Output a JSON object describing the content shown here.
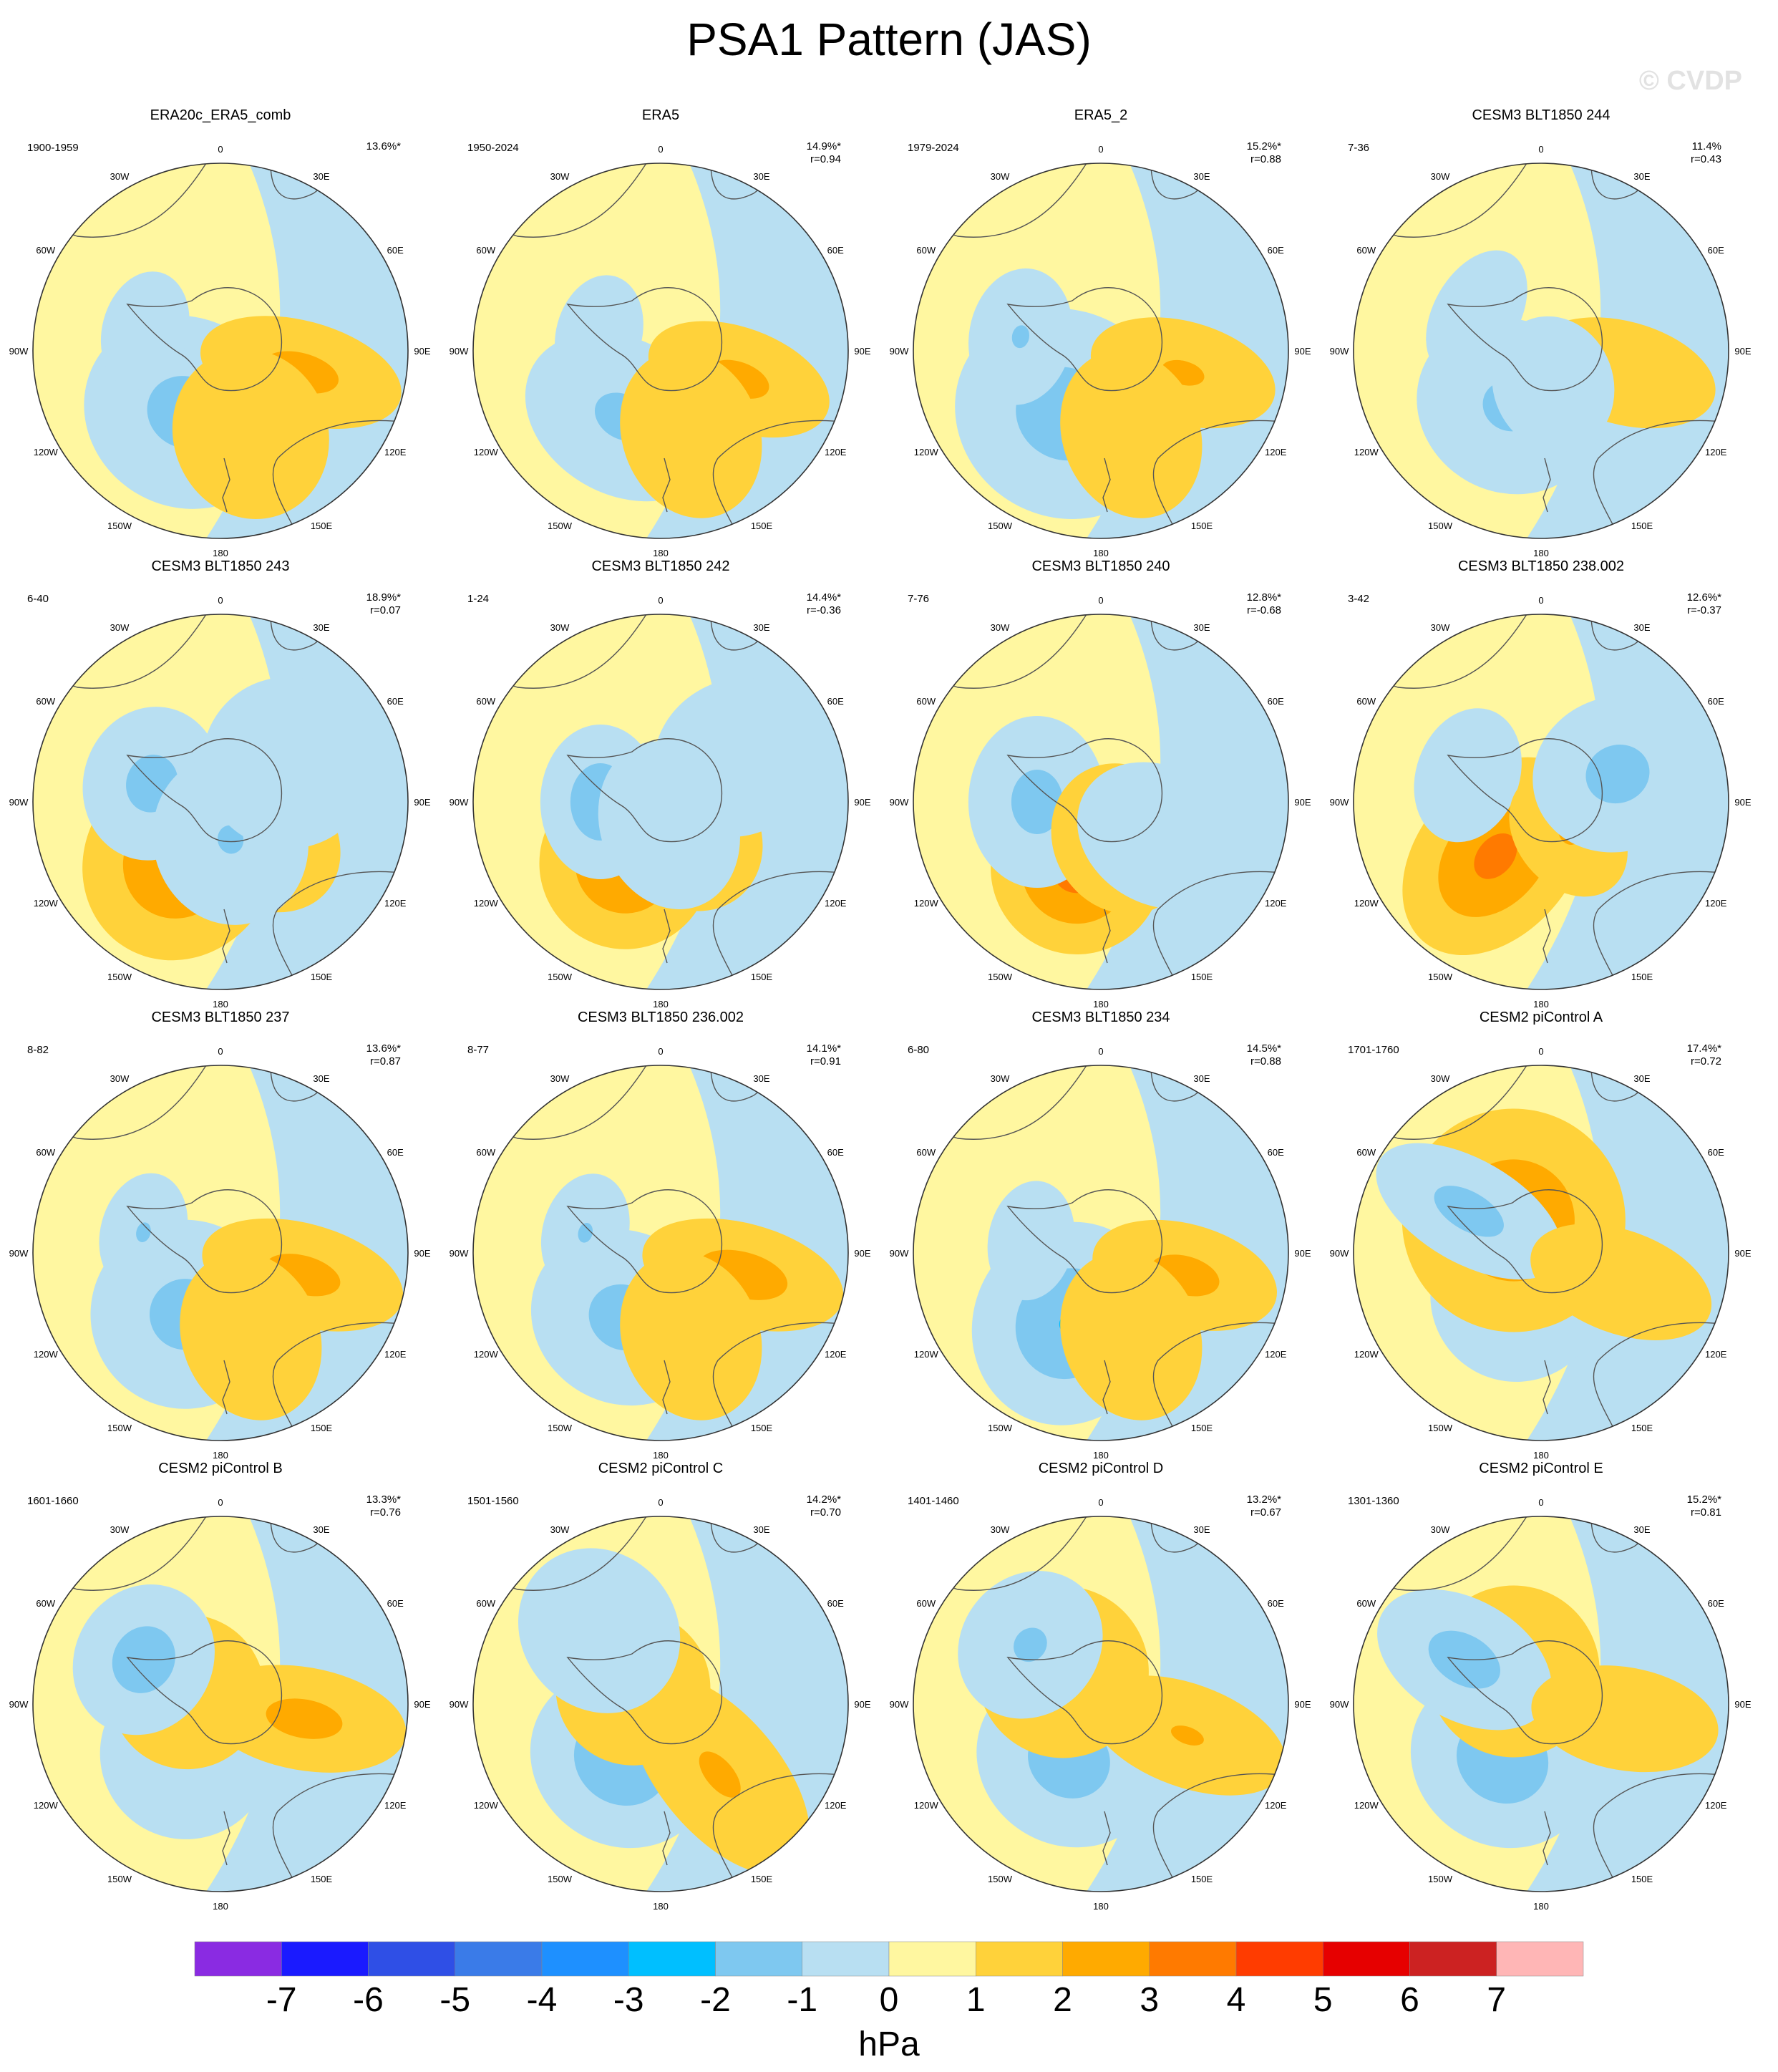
{
  "title": "PSA1 Pattern (JAS)",
  "watermark": "© CVDP",
  "units": "hPa",
  "colorbar": {
    "colors": [
      "#8a2be2",
      "#1a1aff",
      "#2f4fe6",
      "#3a7be8",
      "#1e90ff",
      "#00bfff",
      "#7ec8f0",
      "#b8dff2",
      "#fff7a0",
      "#ffd23a",
      "#ffaa00",
      "#ff7a00",
      "#ff3c00",
      "#e60000",
      "#cc2222",
      "#ffb6b6"
    ],
    "labels": [
      "-7",
      "-6",
      "-5",
      "-4",
      "-3",
      "-2",
      "-1",
      "0",
      "1",
      "2",
      "3",
      "4",
      "5",
      "6",
      "7"
    ]
  },
  "lon_labels": [
    "0",
    "30E",
    "60E",
    "90E",
    "120E",
    "150E",
    "180",
    "150W",
    "120W",
    "90W",
    "60W",
    "30W"
  ],
  "panels": [
    {
      "title": "ERA20c_ERA5_comb",
      "years": "1900-1959",
      "pct": "13.6%*",
      "r": "",
      "fields": [
        [
          -1,
          210,
          200,
          3,
          1.6,
          1.2,
          1.1
        ],
        [
          -1,
          285,
          220,
          4,
          1.0,
          0.7,
          0.5
        ],
        [
          1,
          105,
          235,
          3,
          1.6,
          0.6,
          1.2
        ],
        [
          1,
          160,
          250,
          5,
          1.0,
          0.9,
          1.0
        ],
        [
          0,
          0,
          0,
          0,
          0,
          0.7,
          0
        ]
      ]
    },
    {
      "title": "ERA5",
      "years": "1950-2024",
      "pct": "14.9%*",
      "r": "r=0.94",
      "fields": [
        [
          -1,
          210,
          215,
          3,
          1.4,
          1.2,
          0.9
        ],
        [
          -1,
          285,
          180,
          4,
          0.9,
          0.7,
          0.5
        ],
        [
          1,
          110,
          235,
          3,
          1.5,
          0.6,
          1.1
        ],
        [
          1,
          160,
          250,
          5,
          0.9,
          0.8,
          1.0
        ],
        [
          0,
          0,
          0,
          0,
          0,
          0.6,
          0
        ]
      ]
    },
    {
      "title": "ERA5_2",
      "years": "1979-2024",
      "pct": "15.2%*",
      "r": "r=0.88",
      "fields": [
        [
          -1,
          210,
          205,
          3,
          1.8,
          1.3,
          1.2
        ],
        [
          -1,
          280,
          230,
          4,
          1.2,
          0.8,
          0.6
        ],
        [
          1,
          105,
          240,
          3,
          1.3,
          0.6,
          1.1
        ],
        [
          1,
          160,
          250,
          5,
          0.7,
          0.8,
          1.0
        ],
        [
          0,
          0,
          0,
          0,
          0,
          0.8,
          0
        ]
      ]
    },
    {
      "title": "CESM3 BLT1850 244",
      "years": "7-36",
      "pct": "11.4%",
      "r": "r=0.43",
      "fields": [
        [
          -1,
          210,
          180,
          3,
          1.4,
          1.1,
          1.0
        ],
        [
          -1,
          300,
          210,
          4,
          1.0,
          0.8,
          0.5
        ],
        [
          1,
          105,
          240,
          3,
          1.0,
          0.6,
          1.1
        ],
        [
          -1,
          160,
          100,
          5,
          0.6,
          0.7,
          0.8
        ],
        [
          0,
          0,
          0,
          0,
          0,
          0.4,
          0
        ]
      ]
    },
    {
      "title": "CESM3 BLT1850 243",
      "years": "6-40",
      "pct": "18.9%*",
      "r": "r=0.07",
      "fields": [
        [
          1,
          215,
          200,
          3,
          2.4,
          1.1,
          1.2
        ],
        [
          -1,
          285,
          200,
          4,
          1.6,
          0.9,
          0.8
        ],
        [
          1,
          130,
          150,
          3,
          1.4,
          0.8,
          1.0
        ],
        [
          -1,
          165,
          110,
          5,
          1.2,
          0.9,
          1.0
        ],
        [
          -1,
          60,
          220,
          5,
          1.0,
          1.0,
          1.0
        ]
      ]
    },
    {
      "title": "CESM3 BLT1850 242",
      "years": "1-24",
      "pct": "14.4%*",
      "r": "r=-0.36",
      "fields": [
        [
          1,
          210,
          200,
          3,
          2.4,
          1.0,
          1.0
        ],
        [
          -1,
          270,
          170,
          4,
          2.0,
          0.9,
          0.7
        ],
        [
          1,
          140,
          130,
          3,
          1.4,
          0.8,
          0.9
        ],
        [
          -1,
          160,
          70,
          5,
          0.8,
          0.8,
          1.0
        ],
        [
          -1,
          60,
          250,
          5,
          0.8,
          0.9,
          1.0
        ]
      ]
    },
    {
      "title": "CESM3 BLT1850 240",
      "years": "7-76",
      "pct": "12.8%*",
      "r": "r=-0.68",
      "fields": [
        [
          1,
          200,
          200,
          3,
          2.8,
          1.0,
          1.0
        ],
        [
          -1,
          270,
          180,
          4,
          1.6,
          1.0,
          0.8
        ],
        [
          1,
          150,
          120,
          3,
          1.0,
          0.8,
          0.9
        ],
        [
          -1,
          120,
          190,
          5,
          0.5,
          0.8,
          1.0
        ],
        [
          0,
          0,
          0,
          0,
          0,
          0.5,
          0
        ]
      ]
    },
    {
      "title": "CESM3 BLT1850 238.002",
      "years": "3-42",
      "pct": "12.6%*",
      "r": "r=-0.37",
      "fields": [
        [
          1,
          220,
          200,
          3,
          2.6,
          0.9,
          1.3
        ],
        [
          -1,
          290,
          220,
          4,
          1.0,
          0.8,
          0.6
        ],
        [
          1,
          140,
          120,
          3,
          1.2,
          0.6,
          0.8
        ],
        [
          -1,
          70,
          230,
          5,
          1.6,
          0.9,
          1.0
        ],
        [
          0,
          0,
          0,
          0,
          0,
          0.5,
          0
        ]
      ]
    },
    {
      "title": "CESM3 BLT1850 237",
      "years": "8-82",
      "pct": "13.6%*",
      "r": "r=0.87",
      "fields": [
        [
          -1,
          210,
          200,
          3,
          1.6,
          1.1,
          1.1
        ],
        [
          -1,
          285,
          225,
          4,
          1.2,
          0.7,
          0.5
        ],
        [
          1,
          105,
          240,
          3,
          1.6,
          0.6,
          1.2
        ],
        [
          1,
          160,
          250,
          5,
          0.8,
          0.8,
          1.0
        ],
        [
          0,
          0,
          0,
          0,
          0,
          0.6,
          0
        ]
      ]
    },
    {
      "title": "CESM3 BLT1850 236.002",
      "years": "8-77",
      "pct": "14.1%*",
      "r": "r=0.91",
      "fields": [
        [
          -1,
          210,
          210,
          3,
          1.6,
          1.1,
          1.0
        ],
        [
          -1,
          285,
          220,
          4,
          1.2,
          0.7,
          0.5
        ],
        [
          1,
          105,
          240,
          3,
          1.8,
          0.6,
          1.2
        ],
        [
          1,
          160,
          250,
          5,
          0.8,
          0.8,
          1.0
        ],
        [
          0,
          0,
          0,
          0,
          0,
          0.6,
          0
        ]
      ]
    },
    {
      "title": "CESM3 BLT1850 234",
      "years": "6-80",
      "pct": "14.5%*",
      "r": "r=0.88",
      "fields": [
        [
          -1,
          205,
          220,
          3,
          2.2,
          1.1,
          1.2
        ],
        [
          -1,
          280,
          200,
          4,
          1.0,
          0.7,
          0.5
        ],
        [
          1,
          105,
          245,
          3,
          1.6,
          0.6,
          1.1
        ],
        [
          1,
          160,
          250,
          5,
          0.6,
          0.8,
          1.0
        ],
        [
          0,
          0,
          0,
          0,
          0,
          0.7,
          0
        ]
      ]
    },
    {
      "title": "CESM2 piControl A",
      "years": "1701-1760",
      "pct": "17.4%*",
      "r": "r=0.72",
      "fields": [
        [
          -1,
          210,
          140,
          3,
          1.6,
          1.0,
          1.0
        ],
        [
          1,
          320,
          120,
          4,
          2.2,
          1.3,
          1.3
        ],
        [
          -1,
          300,
          235,
          4,
          1.6,
          0.6,
          1.2
        ],
        [
          1,
          110,
          240,
          3,
          1.1,
          0.6,
          1.1
        ],
        [
          0,
          0,
          0,
          0,
          0,
          0.8,
          0
        ]
      ]
    },
    {
      "title": "CESM2 piControl B",
      "years": "1601-1660",
      "pct": "13.3%*",
      "r": "r=0.76",
      "fields": [
        [
          -1,
          215,
          170,
          3,
          1.2,
          1.0,
          1.0
        ],
        [
          1,
          290,
          100,
          4,
          1.0,
          0.9,
          0.9
        ],
        [
          1,
          100,
          240,
          3,
          1.6,
          0.6,
          1.2
        ],
        [
          -1,
          300,
          250,
          5,
          1.8,
          0.9,
          0.8
        ],
        [
          0,
          0,
          0,
          0,
          0,
          0.5,
          0
        ]
      ]
    },
    {
      "title": "CESM2 piControl C",
      "years": "1501-1560",
      "pct": "14.2%*",
      "r": "r=0.70",
      "fields": [
        [
          -1,
          215,
          190,
          3,
          2.1,
          1.1,
          1.0
        ],
        [
          1,
          300,
          90,
          4,
          1.4,
          0.9,
          0.9
        ],
        [
          1,
          140,
          260,
          3,
          1.3,
          0.7,
          1.4
        ],
        [
          -1,
          320,
          270,
          5,
          0.6,
          0.9,
          1.0
        ],
        [
          0,
          0,
          0,
          0,
          0,
          0.6,
          0
        ]
      ]
    },
    {
      "title": "CESM2 piControl D",
      "years": "1401-1460",
      "pct": "13.2%*",
      "r": "r=0.67",
      "fields": [
        [
          -1,
          210,
          180,
          3,
          1.8,
          1.1,
          1.0
        ],
        [
          1,
          310,
          140,
          4,
          1.4,
          1.0,
          1.0
        ],
        [
          1,
          110,
          260,
          3,
          1.2,
          0.6,
          1.2
        ],
        [
          -1,
          310,
          260,
          5,
          1.3,
          0.9,
          0.8
        ],
        [
          0,
          0,
          0,
          0,
          0,
          0.5,
          0
        ]
      ]
    },
    {
      "title": "CESM2 piControl E",
      "years": "1301-1360",
      "pct": "15.2%*",
      "r": "r=0.81",
      "fields": [
        [
          -1,
          215,
          190,
          3,
          2.0,
          1.1,
          1.0
        ],
        [
          1,
          320,
          120,
          4,
          1.4,
          1.0,
          1.0
        ],
        [
          -1,
          300,
          250,
          4,
          1.7,
          0.7,
          1.1
        ],
        [
          1,
          100,
          240,
          3,
          1.0,
          0.6,
          1.1
        ],
        [
          0,
          0,
          0,
          0,
          0,
          0.6,
          0
        ]
      ]
    }
  ]
}
